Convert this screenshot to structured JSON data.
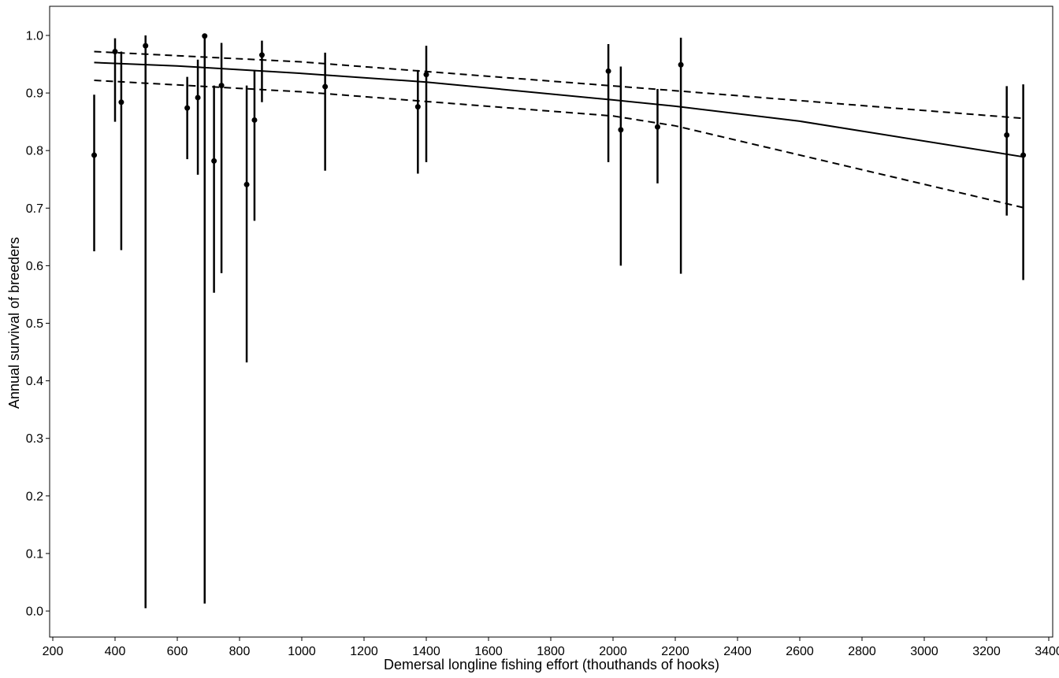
{
  "chart_data": {
    "type": "scatter",
    "title": "",
    "xlabel": "Demersal longline fishing effort (thouthands of hooks)",
    "ylabel": "Annual survival of breeders",
    "xlim": [
      200,
      3400
    ],
    "ylim": [
      0.0,
      1.0
    ],
    "x_ticks": [
      "200",
      "400",
      "600",
      "800",
      "1000",
      "1200",
      "1400",
      "1600",
      "1800",
      "2000",
      "2200",
      "2400",
      "2600",
      "2800",
      "3000",
      "3200",
      "3400"
    ],
    "y_ticks": [
      "0.0",
      "0.1",
      "0.2",
      "0.3",
      "0.4",
      "0.5",
      "0.6",
      "0.7",
      "0.8",
      "0.9",
      "1.0"
    ],
    "grid": false,
    "points": [
      {
        "x": 333,
        "y": 0.792,
        "lower": 0.625,
        "upper": 0.897
      },
      {
        "x": 400,
        "y": 0.972,
        "lower": 0.85,
        "upper": 0.995
      },
      {
        "x": 420,
        "y": 0.884,
        "lower": 0.627,
        "upper": 0.972
      },
      {
        "x": 498,
        "y": 0.982,
        "lower": 0.005,
        "upper": 1.0
      },
      {
        "x": 632,
        "y": 0.874,
        "lower": 0.785,
        "upper": 0.928
      },
      {
        "x": 666,
        "y": 0.892,
        "lower": 0.758,
        "upper": 0.958
      },
      {
        "x": 688,
        "y": 0.999,
        "lower": 0.013,
        "upper": 1.0
      },
      {
        "x": 718,
        "y": 0.782,
        "lower": 0.553,
        "upper": 0.913
      },
      {
        "x": 742,
        "y": 0.913,
        "lower": 0.587,
        "upper": 0.987
      },
      {
        "x": 823,
        "y": 0.741,
        "lower": 0.432,
        "upper": 0.913
      },
      {
        "x": 848,
        "y": 0.853,
        "lower": 0.678,
        "upper": 0.94
      },
      {
        "x": 872,
        "y": 0.966,
        "lower": 0.884,
        "upper": 0.991
      },
      {
        "x": 1075,
        "y": 0.911,
        "lower": 0.765,
        "upper": 0.97
      },
      {
        "x": 1373,
        "y": 0.876,
        "lower": 0.76,
        "upper": 0.94
      },
      {
        "x": 1400,
        "y": 0.932,
        "lower": 0.78,
        "upper": 0.982
      },
      {
        "x": 1985,
        "y": 0.938,
        "lower": 0.78,
        "upper": 0.985
      },
      {
        "x": 2025,
        "y": 0.836,
        "lower": 0.6,
        "upper": 0.946
      },
      {
        "x": 2143,
        "y": 0.841,
        "lower": 0.743,
        "upper": 0.907
      },
      {
        "x": 2218,
        "y": 0.949,
        "lower": 0.586,
        "upper": 0.996
      },
      {
        "x": 3265,
        "y": 0.827,
        "lower": 0.687,
        "upper": 0.912
      },
      {
        "x": 3318,
        "y": 0.792,
        "lower": 0.575,
        "upper": 0.915
      }
    ],
    "series": [
      {
        "style": "solid",
        "x": [
          333,
          600,
          1000,
          1400,
          2000,
          2200,
          2600,
          3318
        ],
        "values": [
          0.953,
          0.947,
          0.934,
          0.919,
          0.888,
          0.877,
          0.851,
          0.789
        ]
      },
      {
        "style": "dashed",
        "x": [
          333,
          1000,
          2200,
          3318
        ],
        "values": [
          0.972,
          0.954,
          0.904,
          0.856
        ]
      },
      {
        "style": "dashed",
        "x": [
          333,
          1000,
          2000,
          2200,
          3318
        ],
        "values": [
          0.922,
          0.902,
          0.86,
          0.843,
          0.701
        ]
      }
    ],
    "colors": {
      "ink": "#000000",
      "background": "#ffffff"
    }
  }
}
